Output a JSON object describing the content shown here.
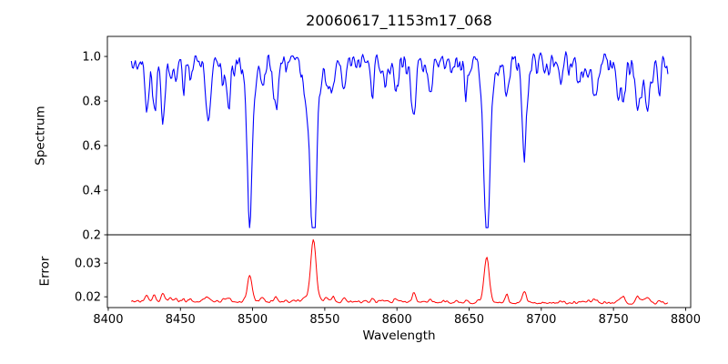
{
  "figure": {
    "title": "20060617_1153m17_068",
    "background": "#ffffff"
  },
  "axes": {
    "xlabel": "Wavelength",
    "x_ticks": [
      8400,
      8450,
      8500,
      8550,
      8600,
      8650,
      8700,
      8750,
      8800
    ],
    "x_tick_labels": [
      "8400",
      "8450",
      "8500",
      "8550",
      "8600",
      "8650",
      "8700",
      "8750",
      "8800"
    ],
    "xlim": [
      8399.4,
      8803.5
    ],
    "top_panel": {
      "ylabel": "Spectrum",
      "y_ticks": [
        0.2,
        0.4,
        0.6,
        0.8,
        1.0
      ],
      "y_tick_labels": [
        "0.2",
        "0.4",
        "0.6",
        "0.8",
        "1.0"
      ],
      "ylim": [
        0.2,
        1.09
      ]
    },
    "bottom_panel": {
      "ylabel": "Error",
      "y_ticks": [
        0.02,
        0.03
      ],
      "y_tick_labels": [
        "0.02",
        "0.03"
      ],
      "ylim": [
        0.0168,
        0.0384
      ]
    }
  },
  "colors": {
    "spectrum_line": "#0000ff",
    "error_line": "#ff0000",
    "axis": "#000000",
    "text": "#000000"
  },
  "chart_data": {
    "type": "line",
    "title": "20060617_1153m17_068",
    "xlabel": "Wavelength",
    "x_range": [
      8416,
      8788
    ],
    "x_step": 0.7,
    "series": [
      {
        "name": "spectrum",
        "color": "#0000ff",
        "panel": "top",
        "continuum": 0.975,
        "noise_typical": 0.02,
        "min_value": 0.245,
        "max_value": 1.04
      },
      {
        "name": "error",
        "color": "#ff0000",
        "panel": "bottom",
        "baseline": 0.0186,
        "end_baseline": 0.018,
        "noise_typical": 0.0004,
        "max_value": 0.037
      }
    ],
    "absorption_lines": [
      {
        "center": 8426,
        "depth": 0.13,
        "width": 1.2,
        "error_peak": 0.0012
      },
      {
        "center": 8432,
        "depth": 0.21,
        "width": 1.3,
        "error_peak": 0.0018
      },
      {
        "center": 8438,
        "depth": 0.27,
        "width": 1.4,
        "error_peak": 0.0025
      },
      {
        "center": 8447,
        "depth": 0.12,
        "width": 1.2,
        "error_peak": 0.001
      },
      {
        "center": 8452,
        "depth": 0.1,
        "width": 1.1,
        "error_peak": 0.0008
      },
      {
        "center": 8468,
        "depth": 0.15,
        "width": 1.4,
        "error_peak": 0.0012
      },
      {
        "center": 8484,
        "depth": 0.1,
        "width": 1.2,
        "error_peak": 0.0008
      },
      {
        "center": 8498.02,
        "depth": 0.56,
        "width": 1.7,
        "error_peak": 0.006
      },
      {
        "center": 8498.02,
        "depth": 0.06,
        "width": 3.5,
        "error_peak": 0.0008
      },
      {
        "center": 8516,
        "depth": 0.2,
        "width": 1.4,
        "error_peak": 0.0015
      },
      {
        "center": 8542.09,
        "depth": 0.73,
        "width": 2.1,
        "error_peak": 0.017
      },
      {
        "center": 8542.09,
        "depth": 0.1,
        "width": 4.5,
        "error_peak": 0.0015
      },
      {
        "center": 8556,
        "depth": 0.09,
        "width": 1.1,
        "error_peak": 0.0012
      },
      {
        "center": 8583,
        "depth": 0.14,
        "width": 1.2,
        "error_peak": 0.001
      },
      {
        "center": 8599,
        "depth": 0.16,
        "width": 1.3,
        "error_peak": 0.0012
      },
      {
        "center": 8612,
        "depth": 0.18,
        "width": 1.3,
        "error_peak": 0.0018
      },
      {
        "center": 8623,
        "depth": 0.14,
        "width": 1.2,
        "error_peak": 0.001
      },
      {
        "center": 8648,
        "depth": 0.1,
        "width": 1.2,
        "error_peak": 0.0008
      },
      {
        "center": 8662.14,
        "depth": 0.69,
        "width": 2.0,
        "error_peak": 0.0125
      },
      {
        "center": 8662.14,
        "depth": 0.08,
        "width": 4.0,
        "error_peak": 0.001
      },
      {
        "center": 8676,
        "depth": 0.11,
        "width": 1.2,
        "error_peak": 0.0022
      },
      {
        "center": 8688,
        "depth": 0.28,
        "width": 1.5,
        "error_peak": 0.0022
      },
      {
        "center": 8713,
        "depth": 0.1,
        "width": 1.2,
        "error_peak": 0.0008
      },
      {
        "center": 8736,
        "depth": 0.1,
        "width": 1.2,
        "error_peak": 0.0008
      },
      {
        "center": 8757,
        "depth": 0.14,
        "width": 1.3,
        "error_peak": 0.0014
      },
      {
        "center": 8766,
        "depth": 0.16,
        "width": 1.3,
        "error_peak": 0.0016
      },
      {
        "center": 8773,
        "depth": 0.13,
        "width": 1.2,
        "error_peak": 0.0012
      }
    ],
    "prominent_lines_x": [
      8498.02,
      8542.09,
      8662.14
    ]
  }
}
